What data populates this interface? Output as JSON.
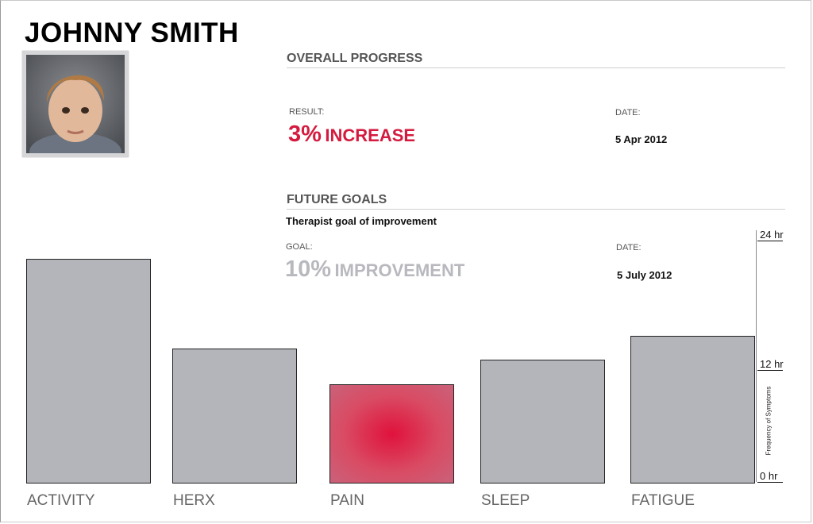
{
  "patient": {
    "name": "JOHNNY SMITH"
  },
  "overall_progress": {
    "title": "OVERALL PROGRESS",
    "result_label": "RESULT:",
    "result_value": "3%",
    "result_text": "INCREASE",
    "date_label": "DATE:",
    "date_value": "5 Apr 2012"
  },
  "future_goals": {
    "title": "FUTURE GOALS",
    "subtitle": "Therapist goal of improvement",
    "goal_label": "GOAL:",
    "goal_value": "10%",
    "goal_text": "IMPROVEMENT",
    "date_label": "DATE:",
    "date_value": "5 July 2012"
  },
  "colors": {
    "accent": "#d41b3f",
    "bar": "#b3b5ba",
    "muted": "#b8b9be"
  },
  "chart_data": {
    "type": "bar",
    "categories": [
      "ACTIVITY",
      "HERX",
      "PAIN",
      "SLEEP",
      "FATIGUE"
    ],
    "values": [
      22.2,
      13.3,
      9.8,
      12.2,
      14.6
    ],
    "highlight": "PAIN",
    "ylabel": "Frequency of Symptoms",
    "yticks": [
      "0 hr",
      "12 hr",
      "24 hr"
    ],
    "ylim": [
      0,
      24
    ]
  }
}
